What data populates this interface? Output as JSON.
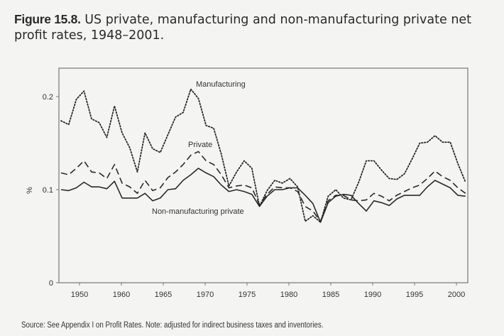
{
  "chart_data": {
    "type": "line",
    "title_label": "Figure 15.8.",
    "title": "US private, manufacturing and non-manufacturing private net profit rates, 1948–2001.",
    "xlabel": "",
    "ylabel": "%",
    "ylim": [
      0,
      0.23
    ],
    "xlim": [
      1948,
      2001
    ],
    "yticks": [
      "0",
      "0.1",
      "0.2"
    ],
    "xtick_labels": [
      "1950",
      "1960",
      "1965",
      "1970",
      "1975",
      "1980",
      "1985",
      "1990",
      "1995",
      "2000"
    ],
    "grid": false,
    "legend": "inline labels",
    "x": [
      1948,
      1949,
      1950,
      1951,
      1952,
      1953,
      1954,
      1955,
      1956,
      1957,
      1958,
      1959,
      1960,
      1961,
      1962,
      1963,
      1964,
      1965,
      1966,
      1967,
      1968,
      1969,
      1970,
      1971,
      1972,
      1973,
      1974,
      1975,
      1976,
      1977,
      1978,
      1979,
      1980,
      1981,
      1982,
      1983,
      1984,
      1985,
      1986,
      1987,
      1988,
      1989,
      1990,
      1991,
      1992,
      1993,
      1994,
      1995,
      1996,
      1997,
      1998,
      1999,
      2000,
      2001
    ],
    "series": [
      {
        "name": "Manufacturing",
        "style": "dotted",
        "values": [
          0.174,
          0.17,
          0.197,
          0.206,
          0.176,
          0.172,
          0.156,
          0.19,
          0.161,
          0.145,
          0.119,
          0.161,
          0.144,
          0.14,
          0.159,
          0.178,
          0.183,
          0.208,
          0.198,
          0.169,
          0.166,
          0.138,
          0.104,
          0.119,
          0.131,
          0.123,
          0.082,
          0.099,
          0.11,
          0.107,
          0.112,
          0.103,
          0.066,
          0.072,
          0.065,
          0.093,
          0.1,
          0.091,
          0.089,
          0.108,
          0.131,
          0.131,
          0.121,
          0.112,
          0.111,
          0.117,
          0.133,
          0.15,
          0.151,
          0.158,
          0.151,
          0.151,
          0.128,
          0.108
        ]
      },
      {
        "name": "Private",
        "style": "dashed",
        "values": [
          0.118,
          0.116,
          0.123,
          0.131,
          0.119,
          0.118,
          0.112,
          0.127,
          0.107,
          0.103,
          0.096,
          0.11,
          0.099,
          0.102,
          0.113,
          0.119,
          0.127,
          0.137,
          0.141,
          0.131,
          0.127,
          0.116,
          0.102,
          0.104,
          0.105,
          0.102,
          0.084,
          0.095,
          0.103,
          0.102,
          0.102,
          0.098,
          0.082,
          0.077,
          0.066,
          0.088,
          0.094,
          0.094,
          0.089,
          0.088,
          0.089,
          0.096,
          0.093,
          0.088,
          0.094,
          0.098,
          0.102,
          0.105,
          0.112,
          0.12,
          0.114,
          0.11,
          0.102,
          0.096
        ]
      },
      {
        "name": "Non-manufacturing private",
        "style": "solid",
        "values": [
          0.1,
          0.099,
          0.102,
          0.108,
          0.103,
          0.103,
          0.101,
          0.109,
          0.091,
          0.091,
          0.091,
          0.096,
          0.088,
          0.091,
          0.1,
          0.101,
          0.11,
          0.116,
          0.123,
          0.118,
          0.114,
          0.105,
          0.098,
          0.1,
          0.098,
          0.095,
          0.082,
          0.093,
          0.1,
          0.1,
          0.102,
          0.102,
          0.094,
          0.085,
          0.065,
          0.086,
          0.093,
          0.095,
          0.094,
          0.085,
          0.077,
          0.088,
          0.086,
          0.083,
          0.09,
          0.094,
          0.094,
          0.094,
          0.103,
          0.11,
          0.106,
          0.102,
          0.094,
          0.093
        ]
      }
    ],
    "source": "Source: See Appendix I on Profit Rates. Note: adjusted for indirect business taxes and inventories."
  }
}
